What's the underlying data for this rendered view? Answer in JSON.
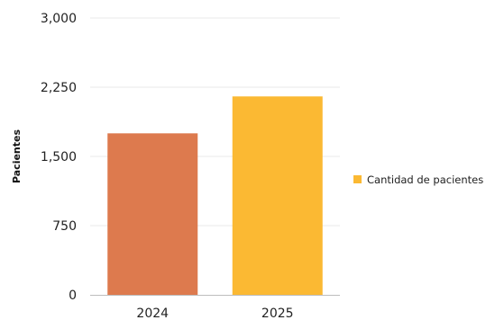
{
  "chart_data": {
    "type": "bar",
    "title": "",
    "xlabel": "",
    "ylabel": "Pacientes",
    "categories": [
      "2024",
      "2025"
    ],
    "bar_colors": [
      "#dd7a4e",
      "#fbb933"
    ],
    "series": [
      {
        "name": "Cantidad de pacientes",
        "values": [
          1750,
          2150
        ],
        "color": "#fbb933"
      }
    ],
    "ylim": [
      0,
      3000
    ],
    "yticks": [
      0,
      750,
      1500,
      2250,
      3000
    ],
    "ytick_labels": [
      "0",
      "750",
      "1,500",
      "2,250",
      "3,000"
    ],
    "grid": true,
    "grid_color": "#e8e8e8",
    "legend_position": "right"
  }
}
